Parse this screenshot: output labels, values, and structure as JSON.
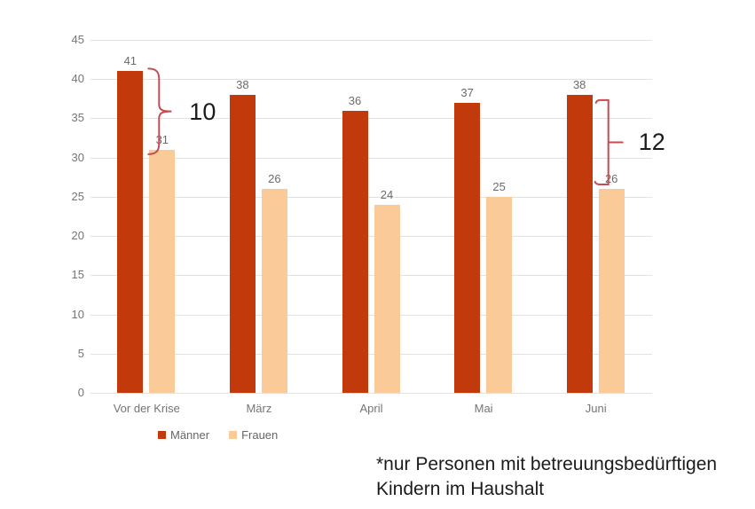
{
  "chart_data": {
    "type": "bar",
    "categories": [
      "Vor der Krise",
      "März",
      "April",
      "Mai",
      "Juni"
    ],
    "series": [
      {
        "name": "Männer",
        "color": "#C23A0C",
        "values": [
          41,
          38,
          36,
          37,
          38
        ]
      },
      {
        "name": "Frauen",
        "color": "#FACA99",
        "values": [
          31,
          26,
          24,
          25,
          26
        ]
      }
    ],
    "ylim": [
      0,
      45
    ],
    "yticks": [
      0,
      5,
      10,
      15,
      20,
      25,
      30,
      35,
      40,
      45
    ],
    "grid": true,
    "legend_position": "bottom-left",
    "data_labels": true,
    "annotations": [
      {
        "label": "10",
        "category_index": 0,
        "style": "curly-brace"
      },
      {
        "label": "12",
        "category_index": 4,
        "style": "square-bracket"
      }
    ],
    "footnote": "*nur Personen mit betreuungsbedürftigen Kindern im Haushalt"
  },
  "footnote": {
    "line1": "*nur Personen mit betreuungsbedürftigen",
    "line2": "Kindern im Haushalt"
  },
  "colors": {
    "maenner": "#C23A0C",
    "frauen": "#FACA99",
    "bracket": "#C94A4F",
    "grid": "#E2E2E2",
    "axis_text": "#757575",
    "bar_label_text": "#6B6B6B",
    "annotation_text": "#1B1B1B"
  }
}
